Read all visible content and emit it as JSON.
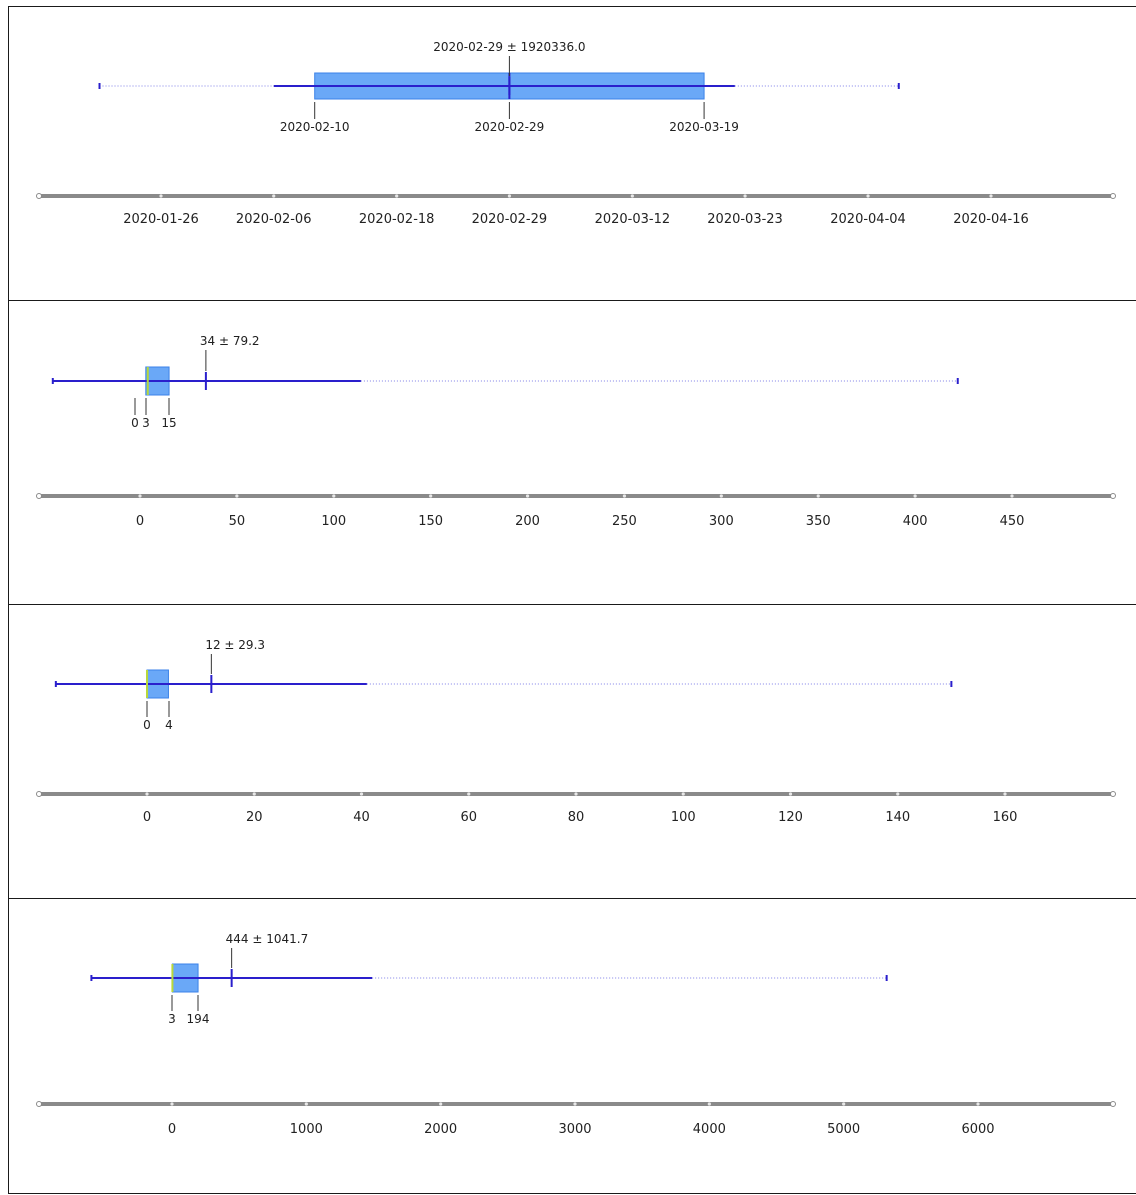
{
  "chart_data": [
    {
      "type": "boxplot",
      "axis_type": "date",
      "ticks": [
        "2020-01-26",
        "2020-02-06",
        "2020-02-18",
        "2020-02-29",
        "2020-03-12",
        "2020-03-23",
        "2020-04-04",
        "2020-04-16"
      ],
      "whisker_low": "2020-01-20",
      "whisker_inner_low": "2020-02-06",
      "q1": "2020-02-10",
      "median": "2020-02-29",
      "q3": "2020-03-19",
      "whisker_inner_high": "2020-03-22",
      "whisker_high": "2020-04-07",
      "mean": "2020-02-29",
      "stats_label": "2020-02-29 ± 1920336.0",
      "box_labels": [
        "2020-02-10",
        "2020-02-29",
        "2020-03-19"
      ]
    },
    {
      "type": "boxplot",
      "axis_type": "number",
      "ticks": [
        "0",
        "50",
        "100",
        "150",
        "200",
        "250",
        "300",
        "350",
        "400",
        "450"
      ],
      "tick_values": [
        0,
        50,
        100,
        150,
        200,
        250,
        300,
        350,
        400,
        450
      ],
      "whisker_low": -45,
      "min": 0,
      "q1": 3,
      "median": 4,
      "q3": 15,
      "mean": 34,
      "whisker_inner_high": 114,
      "whisker_high": 422,
      "stats_label": "34 ± 79.2",
      "box_labels": [
        "0",
        "3",
        "15"
      ]
    },
    {
      "type": "boxplot",
      "axis_type": "number",
      "ticks": [
        "0",
        "20",
        "40",
        "60",
        "80",
        "100",
        "120",
        "140",
        "160"
      ],
      "tick_values": [
        0,
        20,
        40,
        60,
        80,
        100,
        120,
        140,
        160
      ],
      "whisker_low": -17,
      "q1": 0,
      "median": 0,
      "q3": 4,
      "mean": 12,
      "whisker_inner_high": 41,
      "whisker_high": 150,
      "stats_label": "12 ± 29.3",
      "box_labels": [
        "0",
        "4"
      ]
    },
    {
      "type": "boxplot",
      "axis_type": "number",
      "ticks": [
        "0",
        "1000",
        "2000",
        "3000",
        "4000",
        "5000",
        "6000"
      ],
      "tick_values": [
        0,
        1000,
        2000,
        3000,
        4000,
        5000,
        6000
      ],
      "whisker_low": -600,
      "q1": 3,
      "median": 3,
      "q3": 194,
      "mean": 444,
      "whisker_inner_high": 1490,
      "whisker_high": 5320,
      "stats_label": "444 ± 1041.7",
      "box_labels": [
        "3",
        "194"
      ]
    }
  ],
  "colors": {
    "box_fill": "#6aa8f7",
    "box_edge": "#3b82e8",
    "whisker": "#2a1fcc",
    "median": "#b8d83a",
    "axis": "#8a8a8a",
    "border": "#1a1a1a"
  }
}
